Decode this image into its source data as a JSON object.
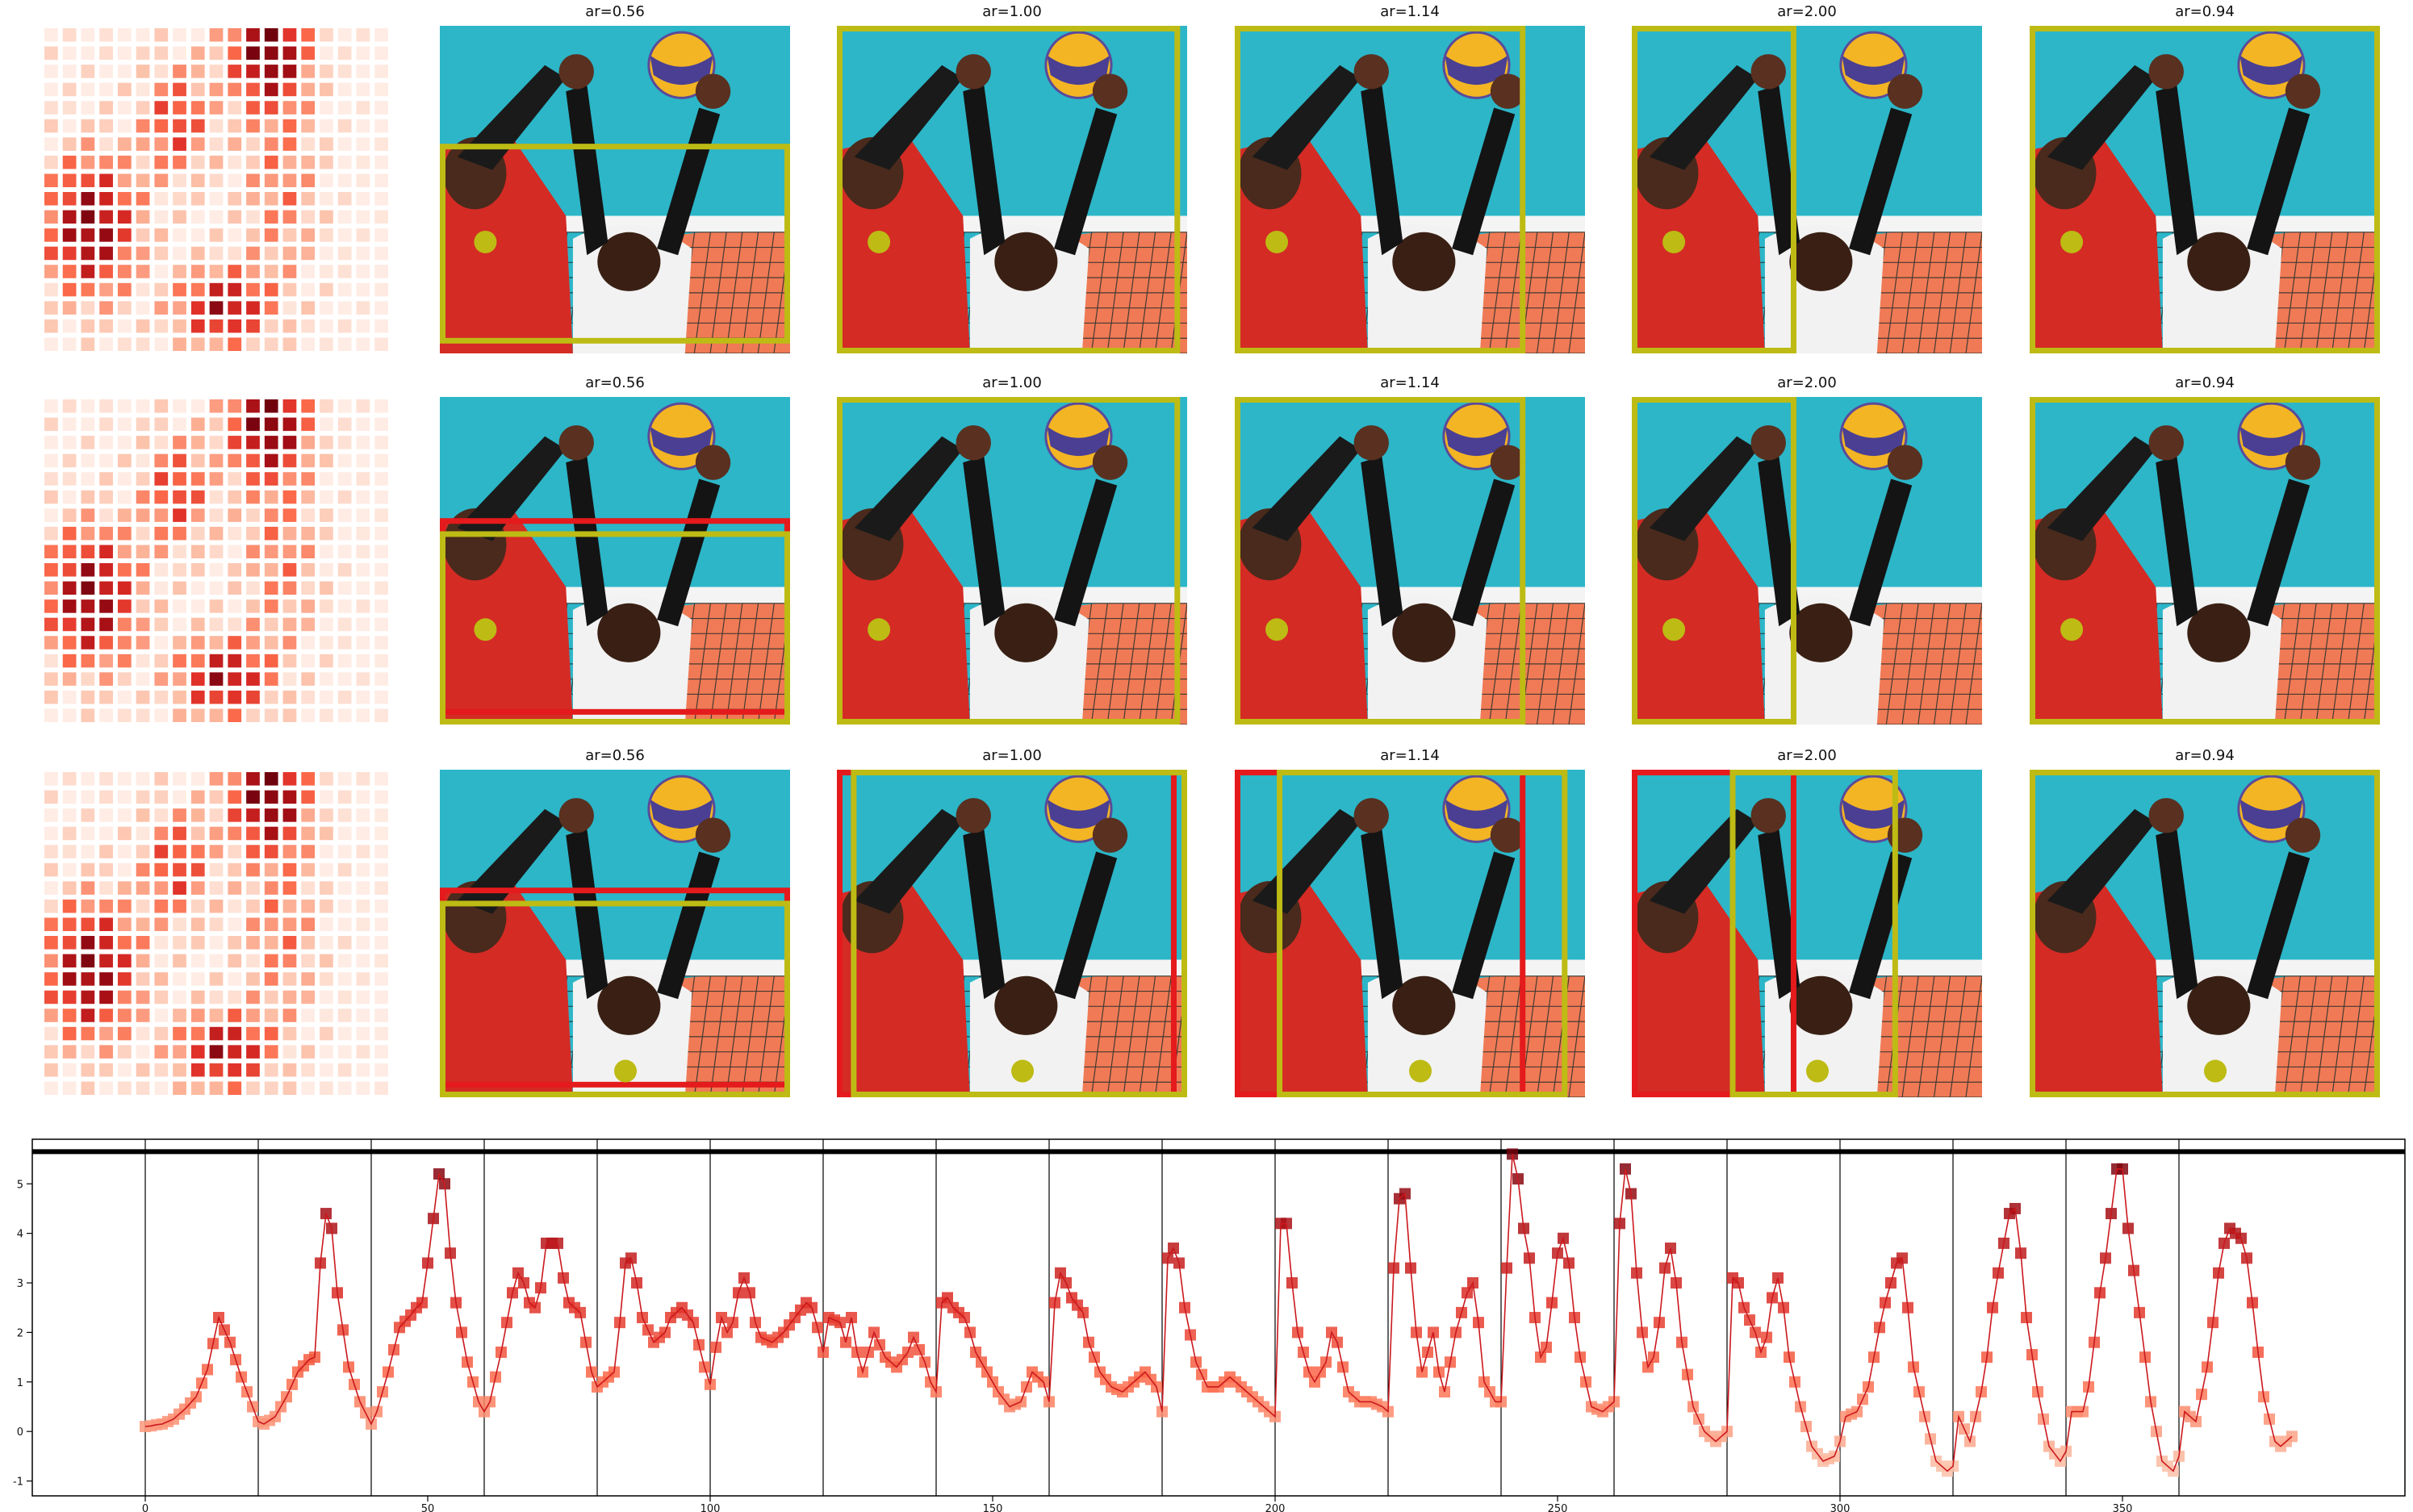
{
  "rows": [
    {
      "panels": [
        {
          "title": "ar=0.56",
          "boxes": [
            {
              "x0": 0.0,
              "y0": 0.36,
              "x1": 1.0,
              "y1": 0.97,
              "color": "yellow"
            }
          ],
          "marker": {
            "x": 0.13,
            "y": 0.66
          }
        },
        {
          "title": "ar=1.00",
          "boxes": [
            {
              "x0": 0.0,
              "y0": 0.0,
              "x1": 0.98,
              "y1": 1.0,
              "color": "yellow"
            }
          ],
          "marker": {
            "x": 0.12,
            "y": 0.66
          }
        },
        {
          "title": "ar=1.14",
          "boxes": [
            {
              "x0": 0.0,
              "y0": 0.0,
              "x1": 0.83,
              "y1": 1.0,
              "color": "yellow"
            }
          ],
          "marker": {
            "x": 0.12,
            "y": 0.66
          }
        },
        {
          "title": "ar=2.00",
          "boxes": [
            {
              "x0": 0.0,
              "y0": 0.0,
              "x1": 0.47,
              "y1": 1.0,
              "color": "yellow"
            }
          ],
          "marker": {
            "x": 0.12,
            "y": 0.66
          }
        },
        {
          "title": "ar=0.94",
          "boxes": [
            {
              "x0": 0.0,
              "y0": 0.0,
              "x1": 1.0,
              "y1": 1.0,
              "color": "yellow"
            }
          ],
          "marker": {
            "x": 0.12,
            "y": 0.66
          }
        }
      ]
    },
    {
      "panels": [
        {
          "title": "ar=0.56",
          "boxes": [
            {
              "x0": 0.0,
              "y0": 0.37,
              "x1": 1.0,
              "y1": 0.97,
              "color": "red"
            },
            {
              "x0": 0.0,
              "y0": 0.41,
              "x1": 1.0,
              "y1": 1.0,
              "color": "yellow"
            }
          ],
          "marker": {
            "x": 0.13,
            "y": 0.71
          }
        },
        {
          "title": "ar=1.00",
          "boxes": [
            {
              "x0": 0.0,
              "y0": 0.0,
              "x1": 0.98,
              "y1": 1.0,
              "color": "yellow"
            }
          ],
          "marker": {
            "x": 0.12,
            "y": 0.71
          }
        },
        {
          "title": "ar=1.14",
          "boxes": [
            {
              "x0": 0.0,
              "y0": 0.0,
              "x1": 0.83,
              "y1": 1.0,
              "color": "yellow"
            }
          ],
          "marker": {
            "x": 0.12,
            "y": 0.71
          }
        },
        {
          "title": "ar=2.00",
          "boxes": [
            {
              "x0": 0.0,
              "y0": 0.0,
              "x1": 0.47,
              "y1": 1.0,
              "color": "yellow"
            }
          ],
          "marker": {
            "x": 0.12,
            "y": 0.71
          }
        },
        {
          "title": "ar=0.94",
          "boxes": [
            {
              "x0": 0.0,
              "y0": 0.0,
              "x1": 1.0,
              "y1": 1.0,
              "color": "yellow"
            }
          ],
          "marker": {
            "x": 0.12,
            "y": 0.71
          }
        }
      ]
    },
    {
      "panels": [
        {
          "title": "ar=0.56",
          "boxes": [
            {
              "x0": 0.0,
              "y0": 0.36,
              "x1": 1.0,
              "y1": 0.97,
              "color": "red"
            },
            {
              "x0": 0.0,
              "y0": 0.4,
              "x1": 1.0,
              "y1": 1.0,
              "color": "yellow"
            }
          ],
          "marker": {
            "x": 0.53,
            "y": 0.92
          }
        },
        {
          "title": "ar=1.00",
          "boxes": [
            {
              "x0": 0.0,
              "y0": 0.0,
              "x1": 0.97,
              "y1": 1.0,
              "color": "red"
            },
            {
              "x0": 0.04,
              "y0": 0.0,
              "x1": 1.0,
              "y1": 1.0,
              "color": "yellow"
            }
          ],
          "marker": {
            "x": 0.53,
            "y": 0.92
          }
        },
        {
          "title": "ar=1.14",
          "boxes": [
            {
              "x0": 0.0,
              "y0": 0.0,
              "x1": 0.83,
              "y1": 1.0,
              "color": "red"
            },
            {
              "x0": 0.12,
              "y0": 0.0,
              "x1": 0.95,
              "y1": 1.0,
              "color": "yellow"
            }
          ],
          "marker": {
            "x": 0.53,
            "y": 0.92
          }
        },
        {
          "title": "ar=2.00",
          "boxes": [
            {
              "x0": 0.0,
              "y0": 0.0,
              "x1": 0.47,
              "y1": 1.0,
              "color": "red"
            },
            {
              "x0": 0.28,
              "y0": 0.0,
              "x1": 0.76,
              "y1": 1.0,
              "color": "yellow"
            }
          ],
          "marker": {
            "x": 0.53,
            "y": 0.92
          }
        },
        {
          "title": "ar=0.94",
          "boxes": [
            {
              "x0": 0.0,
              "y0": 0.0,
              "x1": 1.0,
              "y1": 1.0,
              "color": "yellow"
            }
          ],
          "marker": {
            "x": 0.53,
            "y": 0.92
          }
        }
      ]
    }
  ],
  "heatmap_grid": {
    "rows": 18,
    "cols": 19
  },
  "colors": {
    "yellow": "#bdbb14",
    "red": "#e41a1c",
    "line": "#cb181d",
    "axis": "#000000"
  },
  "chart_data": {
    "type": "line",
    "title": "",
    "xlabel": "",
    "ylabel": "",
    "xlim": [
      -20,
      400
    ],
    "ylim": [
      -1.3,
      5.9
    ],
    "xticks": [
      0,
      50,
      100,
      150,
      200,
      250,
      300,
      350
    ],
    "yticks": [
      -1,
      0,
      1,
      2,
      3,
      4,
      5
    ],
    "vlines": [
      0,
      20,
      40,
      60,
      80,
      100,
      120,
      140,
      160,
      180,
      200,
      220,
      240,
      260,
      280,
      300,
      320,
      340,
      360
    ],
    "hline": 5.65,
    "grid": false,
    "keyframes": [
      [
        0,
        0.1
      ],
      [
        3,
        0.15
      ],
      [
        5,
        0.25
      ],
      [
        7,
        0.45
      ],
      [
        9,
        0.7
      ],
      [
        11,
        1.25
      ],
      [
        13,
        2.3
      ],
      [
        15,
        1.8
      ],
      [
        17,
        1.1
      ],
      [
        19,
        0.5
      ],
      [
        20,
        0.2
      ],
      [
        21,
        0.15
      ],
      [
        23,
        0.3
      ],
      [
        25,
        0.7
      ],
      [
        27,
        1.2
      ],
      [
        29,
        1.45
      ],
      [
        30,
        1.5
      ],
      [
        31,
        3.4
      ],
      [
        32,
        4.4
      ],
      [
        33,
        4.1
      ],
      [
        34,
        2.8
      ],
      [
        36,
        1.3
      ],
      [
        38,
        0.6
      ],
      [
        40,
        0.15
      ],
      [
        41,
        0.4
      ],
      [
        43,
        1.2
      ],
      [
        45,
        2.1
      ],
      [
        47,
        2.35
      ],
      [
        48,
        2.5
      ],
      [
        49,
        2.6
      ],
      [
        50,
        3.4
      ],
      [
        52,
        5.2
      ],
      [
        53,
        5.0
      ],
      [
        54,
        3.6
      ],
      [
        55,
        2.6
      ],
      [
        57,
        1.4
      ],
      [
        59,
        0.6
      ],
      [
        60,
        0.4
      ],
      [
        61,
        0.6
      ],
      [
        63,
        1.6
      ],
      [
        65,
        2.8
      ],
      [
        66,
        3.2
      ],
      [
        67,
        3.0
      ],
      [
        68,
        2.6
      ],
      [
        69,
        2.5
      ],
      [
        70,
        2.9
      ],
      [
        71,
        3.8
      ],
      [
        73,
        3.8
      ],
      [
        74,
        3.1
      ],
      [
        75,
        2.6
      ],
      [
        77,
        2.4
      ],
      [
        79,
        1.2
      ],
      [
        80,
        0.9
      ],
      [
        81,
        1.0
      ],
      [
        83,
        1.2
      ],
      [
        84,
        2.2
      ],
      [
        85,
        3.4
      ],
      [
        86,
        3.5
      ],
      [
        87,
        3.0
      ],
      [
        88,
        2.3
      ],
      [
        90,
        1.8
      ],
      [
        92,
        2.0
      ],
      [
        93,
        2.3
      ],
      [
        95,
        2.5
      ],
      [
        97,
        2.2
      ],
      [
        99,
        1.3
      ],
      [
        100,
        0.95
      ],
      [
        101,
        1.7
      ],
      [
        102,
        2.3
      ],
      [
        103,
        2.0
      ],
      [
        104,
        2.2
      ],
      [
        105,
        2.8
      ],
      [
        106,
        3.1
      ],
      [
        107,
        2.8
      ],
      [
        108,
        2.2
      ],
      [
        109,
        1.9
      ],
      [
        111,
        1.8
      ],
      [
        113,
        2.0
      ],
      [
        115,
        2.3
      ],
      [
        117,
        2.6
      ],
      [
        118,
        2.5
      ],
      [
        119,
        2.1
      ],
      [
        120,
        1.6
      ],
      [
        121,
        2.3
      ],
      [
        123,
        2.2
      ],
      [
        124,
        1.8
      ],
      [
        125,
        2.3
      ],
      [
        126,
        1.6
      ],
      [
        127,
        1.2
      ],
      [
        128,
        1.6
      ],
      [
        129,
        2.0
      ],
      [
        131,
        1.5
      ],
      [
        133,
        1.3
      ],
      [
        135,
        1.6
      ],
      [
        136,
        1.9
      ],
      [
        138,
        1.4
      ],
      [
        139,
        1.0
      ],
      [
        140,
        0.8
      ],
      [
        141,
        2.6
      ],
      [
        142,
        2.7
      ],
      [
        143,
        2.5
      ],
      [
        144,
        2.4
      ],
      [
        145,
        2.3
      ],
      [
        146,
        2.0
      ],
      [
        147,
        1.6
      ],
      [
        149,
        1.2
      ],
      [
        151,
        0.8
      ],
      [
        153,
        0.5
      ],
      [
        155,
        0.6
      ],
      [
        157,
        1.2
      ],
      [
        159,
        1.0
      ],
      [
        160,
        0.6
      ],
      [
        161,
        2.6
      ],
      [
        162,
        3.2
      ],
      [
        163,
        3.0
      ],
      [
        164,
        2.7
      ],
      [
        166,
        2.4
      ],
      [
        167,
        1.8
      ],
      [
        169,
        1.2
      ],
      [
        171,
        0.9
      ],
      [
        173,
        0.8
      ],
      [
        175,
        1.0
      ],
      [
        177,
        1.2
      ],
      [
        179,
        0.9
      ],
      [
        180,
        0.4
      ],
      [
        181,
        3.5
      ],
      [
        182,
        3.7
      ],
      [
        183,
        3.4
      ],
      [
        184,
        2.5
      ],
      [
        186,
        1.4
      ],
      [
        188,
        0.9
      ],
      [
        190,
        0.9
      ],
      [
        192,
        1.1
      ],
      [
        194,
        0.9
      ],
      [
        196,
        0.7
      ],
      [
        198,
        0.5
      ],
      [
        200,
        0.3
      ],
      [
        201,
        4.2
      ],
      [
        202,
        4.2
      ],
      [
        203,
        3.0
      ],
      [
        204,
        2.0
      ],
      [
        206,
        1.2
      ],
      [
        207,
        1.0
      ],
      [
        209,
        1.4
      ],
      [
        210,
        2.0
      ],
      [
        211,
        1.8
      ],
      [
        213,
        0.8
      ],
      [
        215,
        0.6
      ],
      [
        217,
        0.6
      ],
      [
        219,
        0.5
      ],
      [
        220,
        0.4
      ],
      [
        221,
        3.3
      ],
      [
        222,
        4.7
      ],
      [
        223,
        4.8
      ],
      [
        224,
        3.3
      ],
      [
        225,
        2.0
      ],
      [
        226,
        1.2
      ],
      [
        227,
        1.6
      ],
      [
        228,
        2.0
      ],
      [
        229,
        1.2
      ],
      [
        230,
        0.8
      ],
      [
        232,
        2.0
      ],
      [
        234,
        2.8
      ],
      [
        235,
        3.0
      ],
      [
        236,
        2.2
      ],
      [
        237,
        1.0
      ],
      [
        239,
        0.6
      ],
      [
        240,
        0.6
      ],
      [
        241,
        3.3
      ],
      [
        242,
        5.6
      ],
      [
        243,
        5.1
      ],
      [
        244,
        4.1
      ],
      [
        245,
        3.5
      ],
      [
        246,
        2.3
      ],
      [
        247,
        1.5
      ],
      [
        248,
        1.7
      ],
      [
        249,
        2.6
      ],
      [
        250,
        3.6
      ],
      [
        251,
        3.9
      ],
      [
        252,
        3.4
      ],
      [
        253,
        2.3
      ],
      [
        254,
        1.5
      ],
      [
        256,
        0.5
      ],
      [
        258,
        0.4
      ],
      [
        260,
        0.6
      ],
      [
        261,
        4.2
      ],
      [
        262,
        5.3
      ],
      [
        263,
        4.8
      ],
      [
        264,
        3.2
      ],
      [
        265,
        2.0
      ],
      [
        266,
        1.3
      ],
      [
        267,
        1.5
      ],
      [
        268,
        2.2
      ],
      [
        269,
        3.3
      ],
      [
        270,
        3.7
      ],
      [
        271,
        3.0
      ],
      [
        272,
        1.8
      ],
      [
        274,
        0.5
      ],
      [
        276,
        0.0
      ],
      [
        278,
        -0.2
      ],
      [
        280,
        0.0
      ],
      [
        281,
        3.1
      ],
      [
        282,
        3.0
      ],
      [
        283,
        2.5
      ],
      [
        285,
        2.0
      ],
      [
        286,
        1.6
      ],
      [
        287,
        1.9
      ],
      [
        288,
        2.7
      ],
      [
        289,
        3.1
      ],
      [
        290,
        2.5
      ],
      [
        291,
        1.5
      ],
      [
        293,
        0.5
      ],
      [
        295,
        -0.3
      ],
      [
        297,
        -0.6
      ],
      [
        299,
        -0.5
      ],
      [
        300,
        -0.2
      ],
      [
        301,
        0.3
      ],
      [
        303,
        0.4
      ],
      [
        305,
        0.9
      ],
      [
        306,
        1.5
      ],
      [
        307,
        2.1
      ],
      [
        308,
        2.6
      ],
      [
        309,
        3.0
      ],
      [
        310,
        3.4
      ],
      [
        311,
        3.5
      ],
      [
        312,
        2.5
      ],
      [
        313,
        1.3
      ],
      [
        315,
        0.3
      ],
      [
        317,
        -0.6
      ],
      [
        319,
        -0.8
      ],
      [
        320,
        -0.7
      ],
      [
        321,
        0.3
      ],
      [
        323,
        -0.2
      ],
      [
        325,
        0.8
      ],
      [
        326,
        1.5
      ],
      [
        327,
        2.5
      ],
      [
        328,
        3.2
      ],
      [
        329,
        3.8
      ],
      [
        330,
        4.4
      ],
      [
        331,
        4.5
      ],
      [
        332,
        3.6
      ],
      [
        333,
        2.3
      ],
      [
        335,
        0.8
      ],
      [
        337,
        -0.3
      ],
      [
        339,
        -0.6
      ],
      [
        340,
        -0.4
      ],
      [
        341,
        0.4
      ],
      [
        343,
        0.4
      ],
      [
        344,
        0.9
      ],
      [
        345,
        1.8
      ],
      [
        346,
        2.8
      ],
      [
        347,
        3.5
      ],
      [
        348,
        4.4
      ],
      [
        349,
        5.3
      ],
      [
        350,
        5.3
      ],
      [
        351,
        4.1
      ],
      [
        353,
        2.4
      ],
      [
        355,
        0.6
      ],
      [
        357,
        -0.6
      ],
      [
        359,
        -0.8
      ],
      [
        360,
        -0.5
      ],
      [
        361,
        0.4
      ],
      [
        363,
        0.2
      ],
      [
        365,
        1.3
      ],
      [
        366,
        2.2
      ],
      [
        367,
        3.2
      ],
      [
        368,
        3.8
      ],
      [
        369,
        4.1
      ],
      [
        370,
        4.0
      ],
      [
        371,
        3.9
      ],
      [
        372,
        3.5
      ],
      [
        373,
        2.6
      ],
      [
        374,
        1.6
      ],
      [
        375,
        0.7
      ],
      [
        377,
        -0.2
      ],
      [
        378,
        -0.3
      ],
      [
        379,
        -0.2
      ],
      [
        380,
        -0.1
      ]
    ]
  }
}
